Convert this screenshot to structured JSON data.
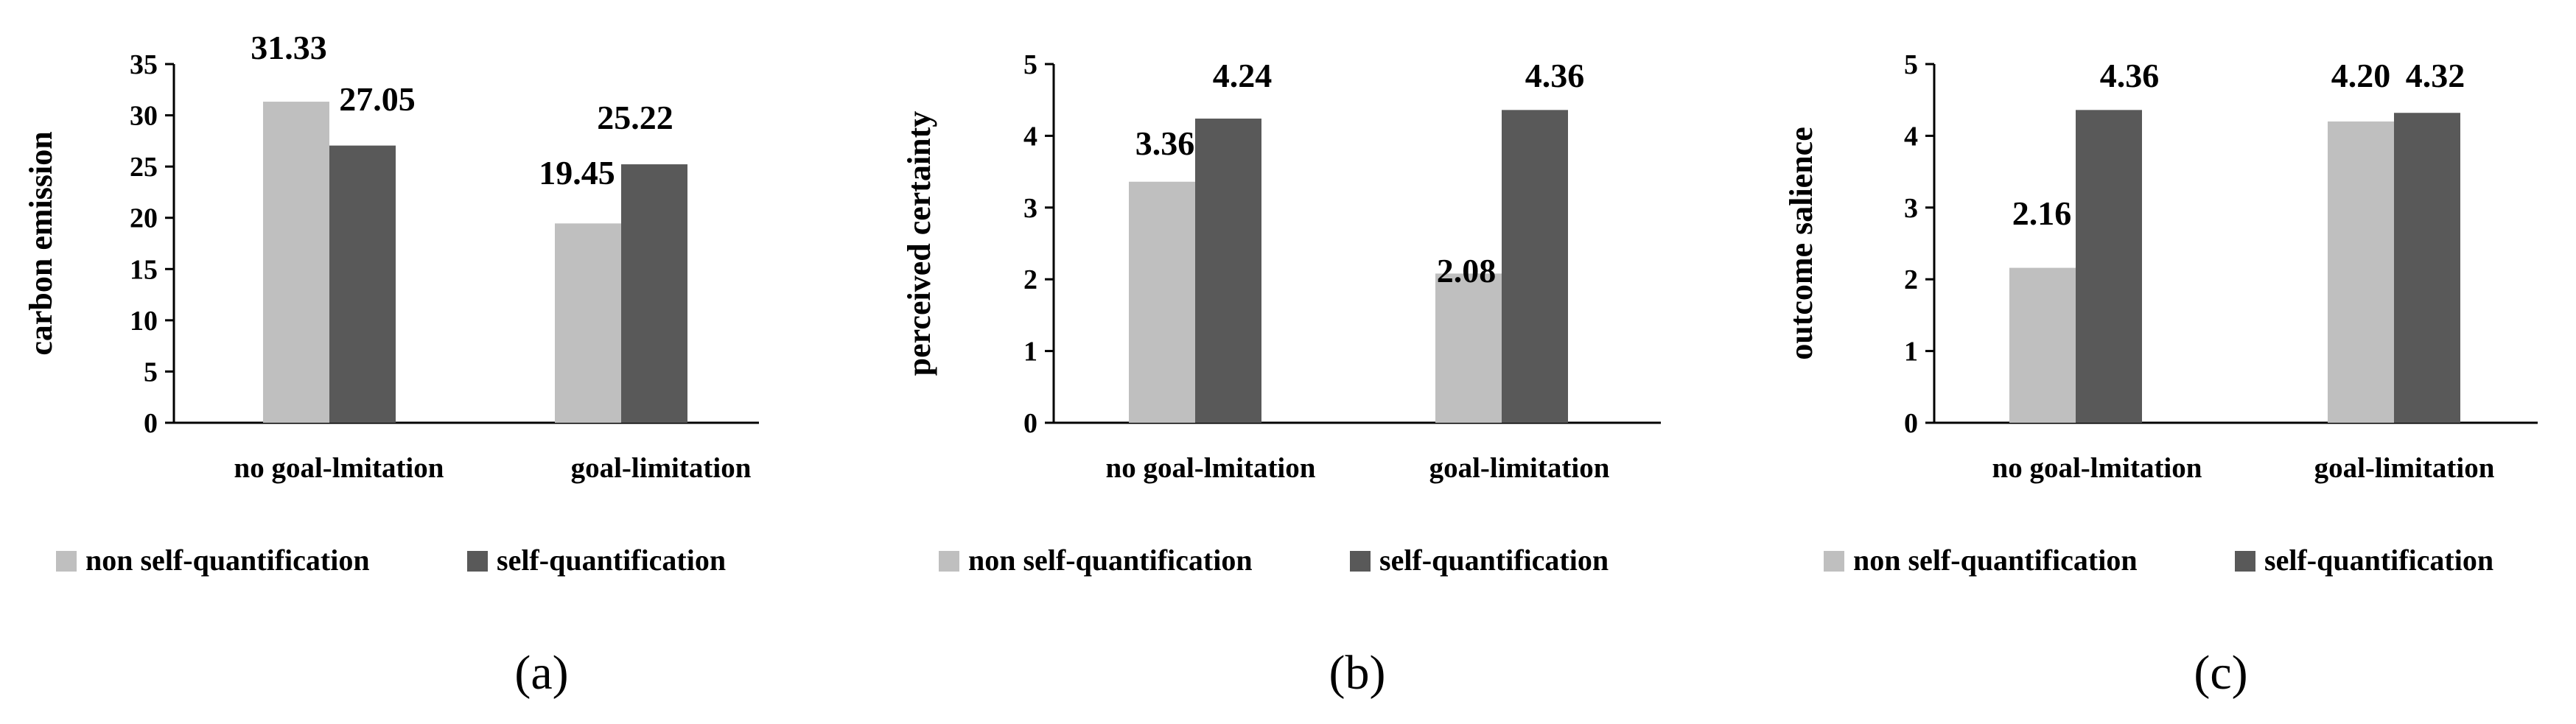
{
  "colors": {
    "non_self_quantification": "#bfbfbf",
    "self_quantification": "#595959",
    "axis": "#000000"
  },
  "chart_data": [
    {
      "type": "bar",
      "panel": "(a)",
      "ylabel": "carbon emission",
      "ylim": [
        0,
        35
      ],
      "yticks": [
        0,
        5,
        10,
        15,
        20,
        25,
        30,
        35
      ],
      "categories": [
        "no goal-lmitation",
        "goal-limitation"
      ],
      "series": [
        {
          "name": "non self-quantification",
          "values": [
            31.33,
            19.45
          ],
          "labels": [
            "31.33",
            "19.45"
          ]
        },
        {
          "name": "self-quantification",
          "values": [
            27.05,
            25.22
          ],
          "labels": [
            "27.05",
            "25.22"
          ]
        }
      ],
      "legend": [
        "non self-quantification",
        "self-quantification"
      ],
      "legend_position": "bottom"
    },
    {
      "type": "bar",
      "panel": "(b)",
      "ylabel": "perceived certainty",
      "ylim": [
        0,
        5
      ],
      "yticks": [
        0,
        1,
        2,
        3,
        4,
        5
      ],
      "categories": [
        "no goal-lmitation",
        "goal-limitation"
      ],
      "series": [
        {
          "name": "non self-quantification",
          "values": [
            3.36,
            2.08
          ],
          "labels": [
            "3.36",
            "2.08"
          ]
        },
        {
          "name": "self-quantification",
          "values": [
            4.24,
            4.36
          ],
          "labels": [
            "4.24",
            "4.36"
          ]
        }
      ],
      "legend": [
        "non self-quantification",
        "self-quantification"
      ],
      "legend_position": "bottom"
    },
    {
      "type": "bar",
      "panel": "(c)",
      "ylabel": "outcome salience",
      "ylim": [
        0,
        5
      ],
      "yticks": [
        0,
        1,
        2,
        3,
        4,
        5
      ],
      "categories": [
        "no goal-lmitation",
        "goal-limitation"
      ],
      "series": [
        {
          "name": "non self-quantification",
          "values": [
            2.16,
            4.2
          ],
          "labels": [
            "2.16",
            "4.20"
          ]
        },
        {
          "name": "self-quantification",
          "values": [
            4.36,
            4.32
          ],
          "labels": [
            "4.36",
            "4.32"
          ]
        }
      ],
      "legend": [
        "non self-quantification",
        "self-quantification"
      ],
      "legend_position": "bottom"
    }
  ]
}
